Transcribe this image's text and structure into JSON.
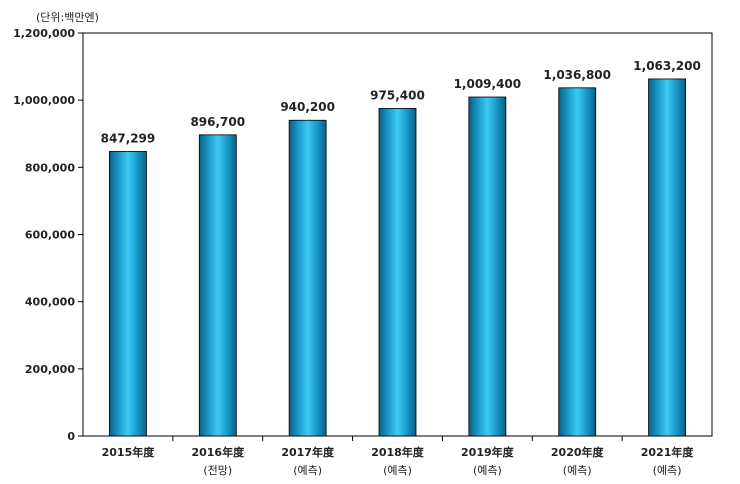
{
  "chart_data": {
    "type": "bar",
    "unit": "(단위:백만엔)",
    "categories": [
      "2015年度",
      "2016年度",
      "2017年度",
      "2018年度",
      "2019年度",
      "2020年度",
      "2021年度"
    ],
    "sublabels": [
      "",
      "(전망)",
      "(예측)",
      "(예측)",
      "(예측)",
      "(예측)",
      "(예측)"
    ],
    "values": [
      847299,
      896700,
      940200,
      975400,
      1009400,
      1036800,
      1063200
    ],
    "value_labels": [
      "847,299",
      "896,700",
      "940,200",
      "975,400",
      "1,009,400",
      "1,036,800",
      "1,063,200"
    ],
    "ylim": [
      0,
      1200000
    ],
    "yticks": [
      0,
      200000,
      400000,
      600000,
      800000,
      1000000,
      1200000
    ],
    "ytick_labels": [
      "0",
      "200,000",
      "400,000",
      "600,000",
      "800,000",
      "1,000,000",
      "1,200,000"
    ],
    "bar_color": "#1aa3d6",
    "grid": false,
    "legend": "none"
  }
}
